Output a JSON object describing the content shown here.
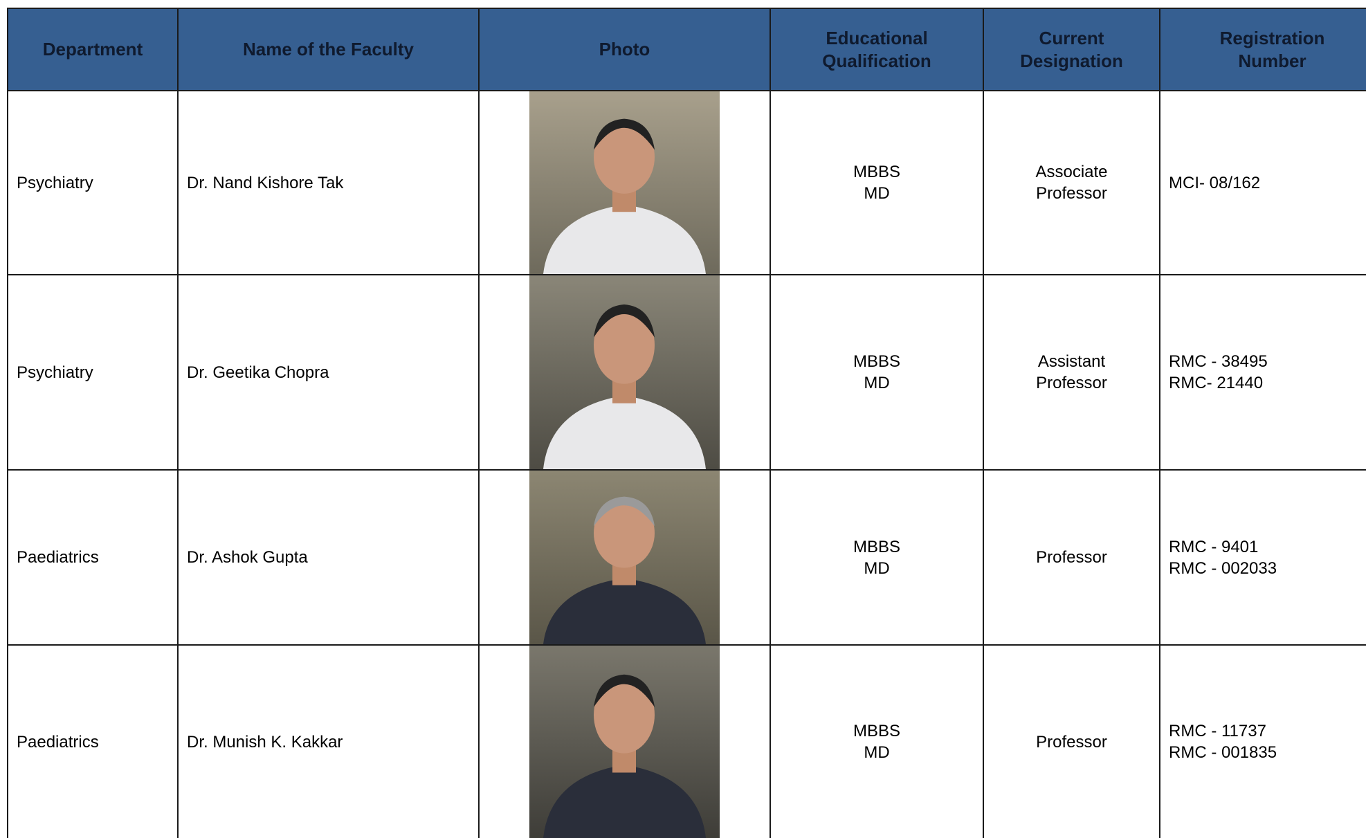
{
  "table": {
    "header": [
      "Department",
      "Name of the Faculty",
      "Photo",
      [
        "Educational",
        "Qualification"
      ],
      [
        "Current",
        "Designation"
      ],
      [
        "Registration",
        "Number"
      ]
    ],
    "rows": [
      {
        "department": "Psychiatry",
        "name": "Dr. Nand Kishore Tak",
        "qualification": [
          "MBBS",
          "MD"
        ],
        "designation": [
          "Associate",
          "Professor"
        ],
        "registration": [
          "MCI- 08/162"
        ]
      },
      {
        "department": "Psychiatry",
        "name": "Dr. Geetika Chopra",
        "qualification": [
          "MBBS",
          "MD"
        ],
        "designation": [
          "Assistant",
          "Professor"
        ],
        "registration": [
          "RMC - 38495",
          "RMC- 21440"
        ]
      },
      {
        "department": "Paediatrics",
        "name": "Dr. Ashok Gupta",
        "qualification": [
          "MBBS",
          "MD"
        ],
        "designation": [
          "Professor"
        ],
        "registration": [
          "RMC - 9401",
          "RMC - 002033"
        ]
      },
      {
        "department": "Paediatrics",
        "name": "Dr. Munish K.  Kakkar",
        "qualification": [
          "MBBS",
          "MD"
        ],
        "designation": [
          "Professor"
        ],
        "registration": [
          "RMC - 11737",
          "RMC - 001835"
        ]
      }
    ]
  }
}
